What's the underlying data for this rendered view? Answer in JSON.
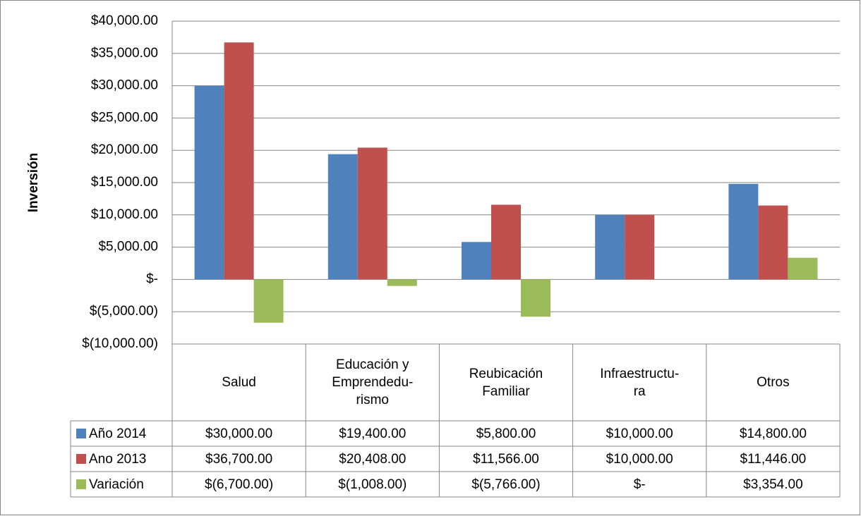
{
  "chart_data": {
    "type": "bar",
    "y_label": "Inversión",
    "categories": [
      "Salud",
      "Educación y\nEmprendedu-\nrismo",
      "Reubicación\nFamiliar",
      "Infraestructu-\nra",
      "Otros"
    ],
    "series": [
      {
        "name": "Año 2014",
        "color": "#4f81bd",
        "values": [
          30000,
          19400,
          5800,
          10000,
          14800
        ],
        "value_labels": [
          "$30,000.00",
          "$19,400.00",
          "$5,800.00",
          "$10,000.00",
          "$14,800.00"
        ]
      },
      {
        "name": "Ano 2013",
        "color": "#c0504d",
        "values": [
          36700,
          20408,
          11566,
          10000,
          11446
        ],
        "value_labels": [
          "$36,700.00",
          "$20,408.00",
          "$11,566.00",
          "$10,000.00",
          "$11,446.00"
        ]
      },
      {
        "name": "Variación",
        "color": "#9bbb59",
        "values": [
          -6700,
          -1008,
          -5766,
          0,
          3354
        ],
        "value_labels": [
          "$(6,700.00)",
          "$(1,008.00)",
          "$(5,766.00)",
          "$-",
          "$3,354.00"
        ]
      }
    ],
    "ylim": [
      -10000,
      40000
    ],
    "yticks": [
      {
        "value": -10000,
        "label": "$(10,000.00)"
      },
      {
        "value": -5000,
        "label": "$(5,000.00)"
      },
      {
        "value": 0,
        "label": "$-"
      },
      {
        "value": 5000,
        "label": "$5,000.00"
      },
      {
        "value": 10000,
        "label": "$10,000.00"
      },
      {
        "value": 15000,
        "label": "$15,000.00"
      },
      {
        "value": 20000,
        "label": "$20,000.00"
      },
      {
        "value": 25000,
        "label": "$25,000.00"
      },
      {
        "value": 30000,
        "label": "$30,000.00"
      },
      {
        "value": 35000,
        "label": "$35,000.00"
      },
      {
        "value": 40000,
        "label": "$40,000.00"
      }
    ],
    "grid": true
  }
}
